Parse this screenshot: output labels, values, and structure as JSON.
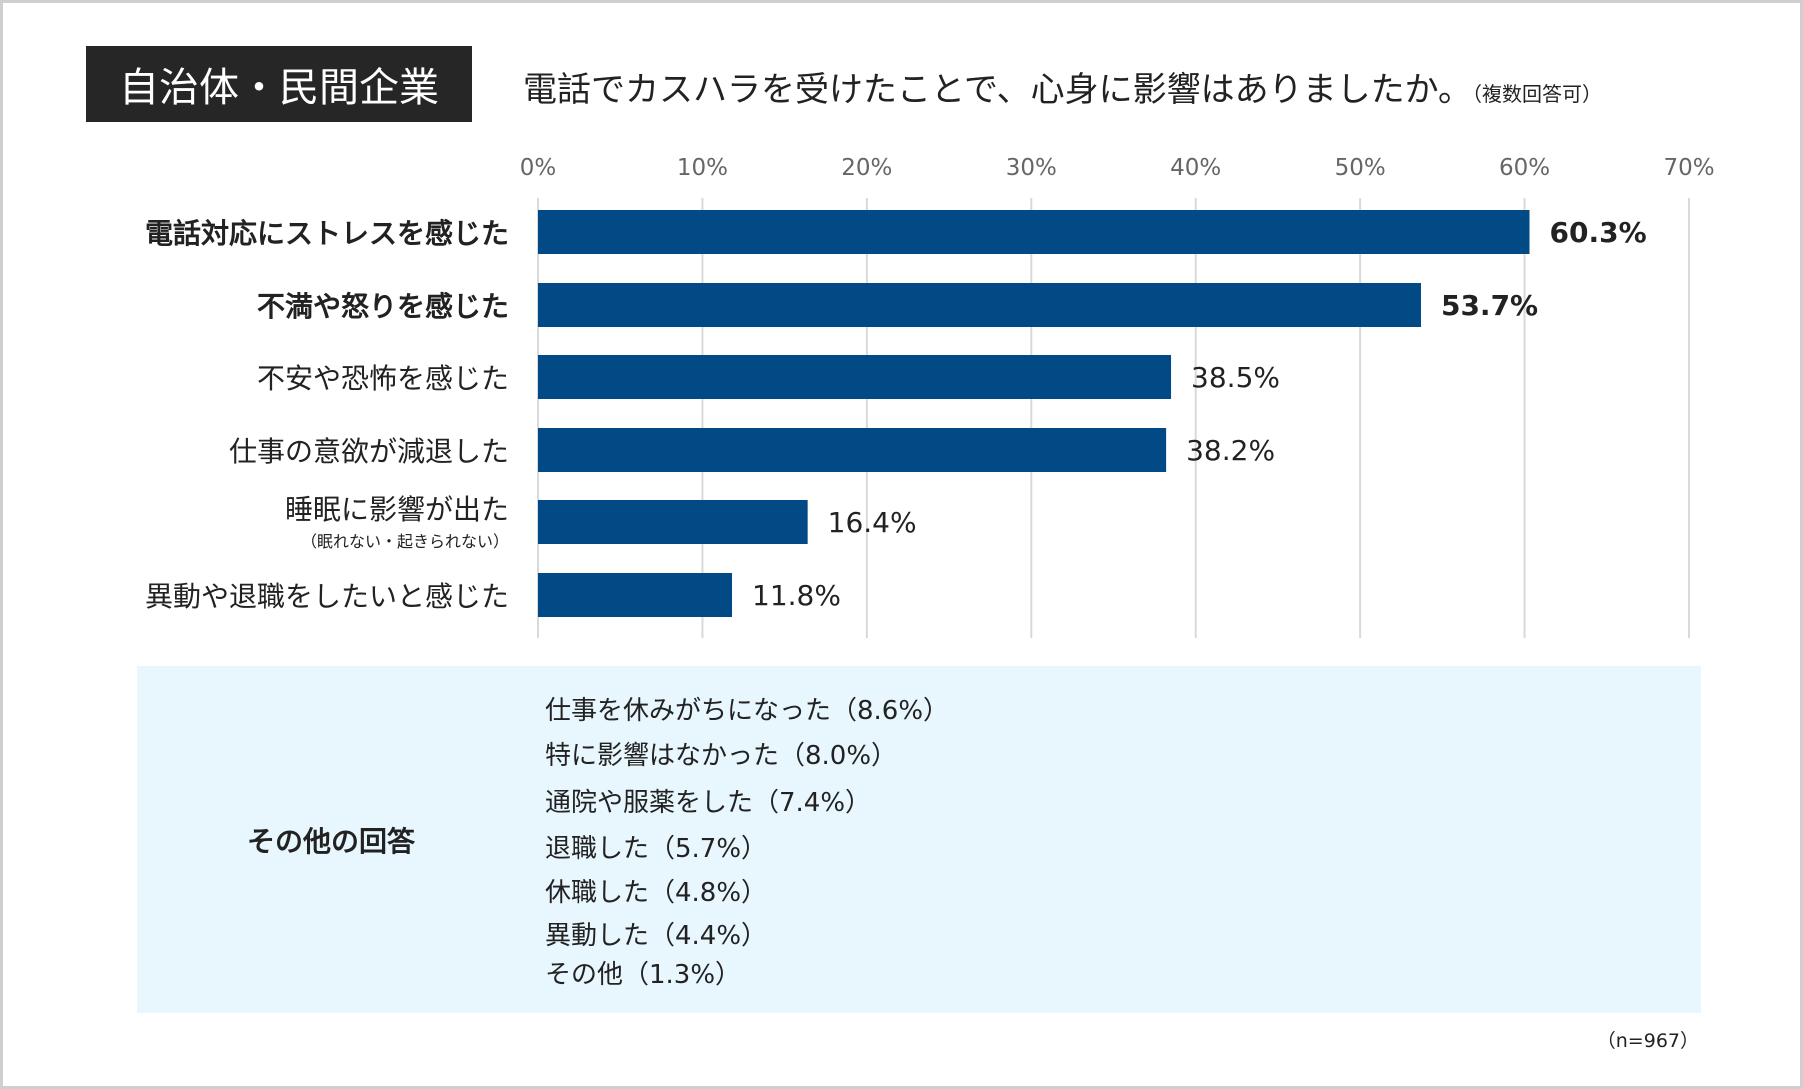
{
  "header": {
    "badge": "自治体・民間企業",
    "question": "電話でカスハラを受けたことで、心身に影響はありましたか。",
    "note": "（複数回答可）"
  },
  "chart_data": {
    "type": "bar",
    "orientation": "horizontal",
    "xlim": [
      0,
      70
    ],
    "ticks": [
      "0%",
      "10%",
      "20%",
      "30%",
      "40%",
      "50%",
      "60%",
      "70%"
    ],
    "grid": true,
    "bar_color": "#024a86",
    "categories": [
      "電話対応にストレスを感じた",
      "不満や怒りを感じた",
      "不安や恐怖を感じた",
      "仕事の意欲が減退した",
      "睡眠に影響が出た",
      "異動や退職をしたいと感じた"
    ],
    "category_notes": [
      "",
      "",
      "",
      "",
      "（眠れない・起きられない）",
      ""
    ],
    "bold": [
      true,
      true,
      false,
      false,
      false,
      false
    ],
    "values": [
      60.3,
      53.7,
      38.5,
      38.2,
      16.4,
      11.8
    ],
    "labels": [
      "60.3%",
      "53.7%",
      "38.5%",
      "38.2%",
      "16.4%",
      "11.8%"
    ]
  },
  "other": {
    "title": "その他の回答",
    "items": [
      "仕事を休みがちになった（8.6%）",
      "特に影響はなかった（8.0%）",
      "通院や服薬をした（7.4%）",
      "退職した（5.7%）",
      "休職した（4.8%）",
      "異動した（4.4%）",
      "その他（1.3%）"
    ],
    "bg": "#e8f6fd"
  },
  "footnote": "（n=967）"
}
